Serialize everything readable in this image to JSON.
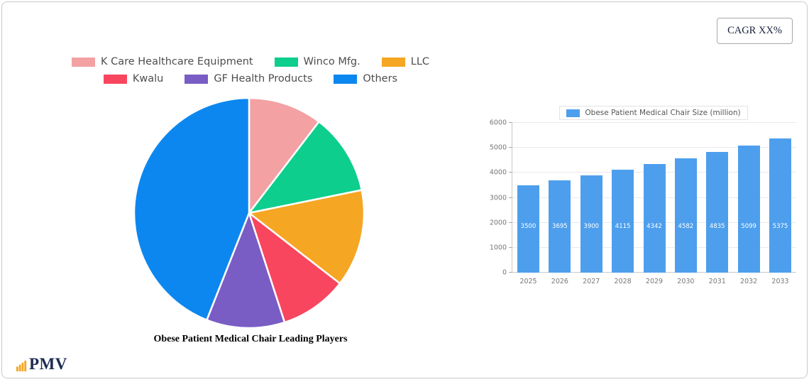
{
  "cagr_label": "CAGR XX%",
  "logo_text": "PMV",
  "colors": {
    "card_border": "#c9c9c9",
    "pie_blue": "#0c87ef",
    "bar_blue": "#4d9fed",
    "logo_navy": "#1e2b52",
    "logo_orange": "#f5a623",
    "axis_text": "#777777",
    "legend_text": "#4d4d4d"
  },
  "chart_data": [
    {
      "type": "pie",
      "title": "Obese Patient Medical Chair Leading Players",
      "labels": [
        "K Care Healthcare Equipment",
        "Winco Mfg.",
        "LLC",
        "Kwalu",
        "GF Health Products",
        "Others"
      ],
      "values": [
        10.4,
        11.4,
        13.7,
        9.5,
        11.0,
        44.0
      ],
      "colors": [
        "#f3a1a3",
        "#0dce8d",
        "#f5a623",
        "#f8465e",
        "#7a5cc5",
        "#0c87ef"
      ],
      "legend_rows": [
        3,
        3
      ],
      "start_angle_deg": 0,
      "direction": "clockwise",
      "legend_position": "top"
    },
    {
      "type": "bar",
      "legend_label": "Obese Patient Medical Chair Size (million)",
      "categories": [
        "2025",
        "2026",
        "2027",
        "2028",
        "2029",
        "2030",
        "2031",
        "2032",
        "2033"
      ],
      "values": [
        3500,
        3695,
        3900,
        4115,
        4342,
        4582,
        4835,
        5099,
        5375
      ],
      "bar_color": "#4d9fed",
      "value_label_color": "#ffffff",
      "ylim": [
        0,
        6000
      ],
      "yticks": [
        0,
        1000,
        2000,
        3000,
        4000,
        5000,
        6000
      ],
      "grid": true,
      "legend_position": "top"
    }
  ]
}
